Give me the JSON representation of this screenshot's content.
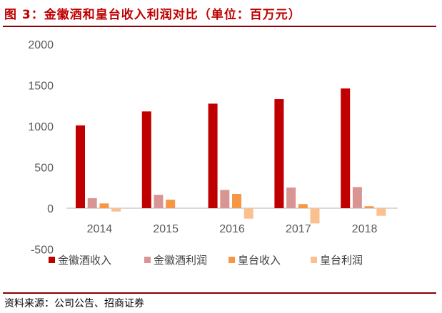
{
  "title": "图 3：金徽酒和皇台收入利润对比（单位：百万元）",
  "source": "资料来源：公司公告、招商证券",
  "chart_data": {
    "type": "bar",
    "title": "金徽酒和皇台收入利润对比（单位：百万元）",
    "categories": [
      "2014",
      "2015",
      "2016",
      "2017",
      "2018"
    ],
    "series": [
      {
        "name": "金徽酒收入",
        "color": "#c00000",
        "values": [
          1010,
          1180,
          1275,
          1330,
          1460
        ]
      },
      {
        "name": "金徽酒利润",
        "color": "#d99594",
        "values": [
          122,
          163,
          223,
          252,
          258
        ]
      },
      {
        "name": "皇台收入",
        "color": "#f79646",
        "values": [
          58,
          104,
          174,
          50,
          24
        ]
      },
      {
        "name": "皇台利润",
        "color": "#fac090",
        "values": [
          -41,
          0,
          -128,
          -186,
          -93
        ]
      }
    ],
    "yticks": [
      -500,
      0,
      500,
      1000,
      1500,
      2000
    ],
    "ylim": [
      -500,
      2000
    ],
    "legend": "bottom",
    "grid": false
  }
}
